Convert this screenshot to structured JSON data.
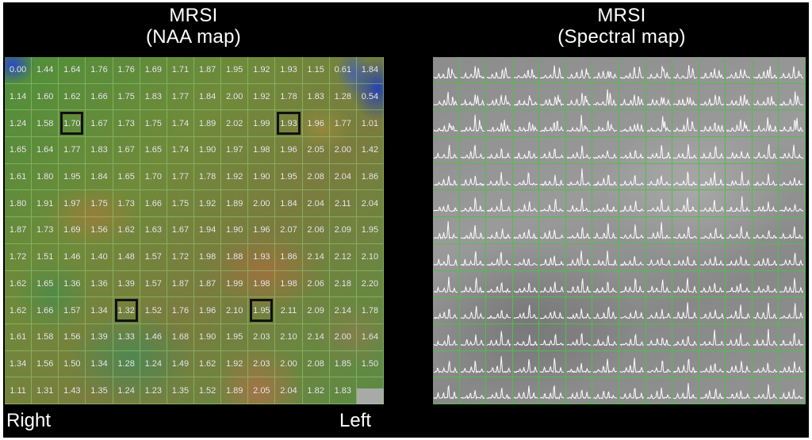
{
  "naa_panel": {
    "title_line1": "MRSI",
    "title_line2": "(NAA map)",
    "label_left_side": "Right",
    "label_right_side": "Left",
    "rows": [
      [
        "0.00",
        "1.44",
        "1.64",
        "1.76",
        "1.76",
        "1.69",
        "1.71",
        "1.87",
        "1.95",
        "1.92",
        "1.93",
        "1.15",
        "0.61",
        "1.84"
      ],
      [
        "1.14",
        "1.60",
        "1.62",
        "1.66",
        "1.75",
        "1.83",
        "1.77",
        "1.84",
        "2.00",
        "1.92",
        "1.78",
        "1.83",
        "1.28",
        "0.54"
      ],
      [
        "1.24",
        "1.58",
        "1.70",
        "1.67",
        "1.73",
        "1.75",
        "1.74",
        "1.89",
        "2.02",
        "1.99",
        "1.93",
        "1.96",
        "1.77",
        "1.01"
      ],
      [
        "1.65",
        "1.64",
        "1.77",
        "1.83",
        "1.67",
        "1.65",
        "1.74",
        "1.90",
        "1.97",
        "1.98",
        "1.96",
        "2.05",
        "2.00",
        "1.42"
      ],
      [
        "1.61",
        "1.80",
        "1.95",
        "1.84",
        "1.65",
        "1.70",
        "1.77",
        "1.78",
        "1.92",
        "1.90",
        "1.95",
        "2.08",
        "2.04",
        "1.86"
      ],
      [
        "1.80",
        "1.91",
        "1.97",
        "1.75",
        "1.73",
        "1.66",
        "1.75",
        "1.92",
        "1.89",
        "2.00",
        "1.84",
        "2.04",
        "2.11",
        "2.04"
      ],
      [
        "1.87",
        "1.73",
        "1.69",
        "1.56",
        "1.62",
        "1.63",
        "1.67",
        "1.94",
        "1.90",
        "1.96",
        "2.07",
        "2.06",
        "2.09",
        "1.95"
      ],
      [
        "1.72",
        "1.51",
        "1.46",
        "1.40",
        "1.48",
        "1.57",
        "1.72",
        "1.98",
        "1.88",
        "1.93",
        "1.86",
        "2.14",
        "2.12",
        "2.10"
      ],
      [
        "1.62",
        "1.65",
        "1.36",
        "1.36",
        "1.39",
        "1.57",
        "1.87",
        "1.87",
        "1.99",
        "1.98",
        "1.98",
        "2.06",
        "2.18",
        "2.20"
      ],
      [
        "1.62",
        "1.66",
        "1.57",
        "1.34",
        "1.32",
        "1.52",
        "1.76",
        "1.96",
        "2.10",
        "1.95",
        "2.11",
        "2.09",
        "2.14",
        "1.78"
      ],
      [
        "1.61",
        "1.58",
        "1.56",
        "1.39",
        "1.33",
        "1.46",
        "1.68",
        "1.90",
        "1.95",
        "2.03",
        "2.10",
        "2.14",
        "2.00",
        "1.64"
      ],
      [
        "1.34",
        "1.56",
        "1.50",
        "1.34",
        "1.28",
        "1.24",
        "1.49",
        "1.62",
        "1.92",
        "2.03",
        "2.00",
        "2.08",
        "1.85",
        "1.50"
      ],
      [
        "1.11",
        "1.31",
        "1.43",
        "1.35",
        "1.24",
        "1.23",
        "1.35",
        "1.52",
        "1.89",
        "2.05",
        "2.04",
        "1.82",
        "1.83",
        ""
      ]
    ],
    "highlighted_cells": [
      [
        2,
        2
      ],
      [
        2,
        10
      ],
      [
        9,
        4
      ],
      [
        9,
        9
      ]
    ]
  },
  "spectral_panel": {
    "title_line1": "MRSI",
    "title_line2": "(Spectral map)",
    "grid_rows": 13,
    "grid_cols": 14,
    "grid_color": "#4fbf4a",
    "trace_color": "#ffffff"
  }
}
